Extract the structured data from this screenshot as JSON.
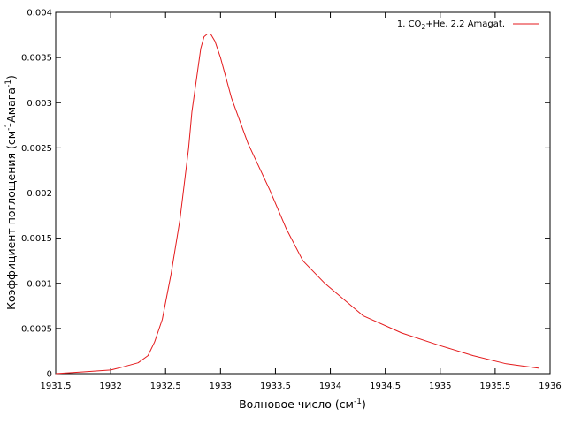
{
  "chart_data": {
    "type": "line",
    "xlabel": {
      "main": "Волновое число (см",
      "sup": "-1",
      "tail": ")"
    },
    "ylabel": {
      "main": "Коэффициент поглощения (см",
      "sup": "-1",
      "mid": "Амага",
      "sup2": "-1",
      "tail": ")"
    },
    "xlim": [
      1931.5,
      1936
    ],
    "ylim": [
      0,
      0.004
    ],
    "x_ticks": [
      1931.5,
      1932,
      1932.5,
      1933,
      1933.5,
      1934,
      1934.5,
      1935,
      1935.5,
      1936
    ],
    "x_tick_labels": [
      "1931.5",
      "1932",
      "1932.5",
      "1933",
      "1933.5",
      "1934",
      "1934.5",
      "1935",
      "1935.5",
      "1936"
    ],
    "y_ticks": [
      0,
      0.0005,
      0.001,
      0.0015,
      0.002,
      0.0025,
      0.003,
      0.0035,
      0.004
    ],
    "y_tick_labels": [
      "0",
      "0.0005",
      "0.001",
      "0.0015",
      "0.002",
      "0.0025",
      "0.003",
      "0.0035",
      "0.004"
    ],
    "legend_position": "top-right",
    "grid": false,
    "series": [
      {
        "name": "1. CO2+He, 2.2 Amagat.",
        "legend": {
          "prefix": "1. CO",
          "sub": "2",
          "suffix": "+He, 2.2 Amagat."
        },
        "color": "#e41a1c",
        "x": [
          1931.5,
          1931.75,
          1932.0,
          1932.1,
          1932.25,
          1932.34,
          1932.4,
          1932.47,
          1932.55,
          1932.63,
          1932.71,
          1932.74,
          1932.78,
          1932.82,
          1932.85,
          1932.88,
          1932.91,
          1932.95,
          1933.0,
          1933.1,
          1933.25,
          1933.45,
          1933.6,
          1933.75,
          1933.95,
          1934.3,
          1934.65,
          1935.0,
          1935.3,
          1935.6,
          1935.9
        ],
        "y": [
          0.0,
          2e-05,
          4e-05,
          7e-05,
          0.00012,
          0.0002,
          0.00035,
          0.0006,
          0.0011,
          0.0017,
          0.0025,
          0.0029,
          0.00325,
          0.0036,
          0.00373,
          0.00376,
          0.00376,
          0.00368,
          0.0035,
          0.00305,
          0.00255,
          0.00203,
          0.0016,
          0.00125,
          0.001,
          0.00064,
          0.00045,
          0.00031,
          0.0002,
          0.00011,
          6e-05
        ]
      }
    ]
  }
}
